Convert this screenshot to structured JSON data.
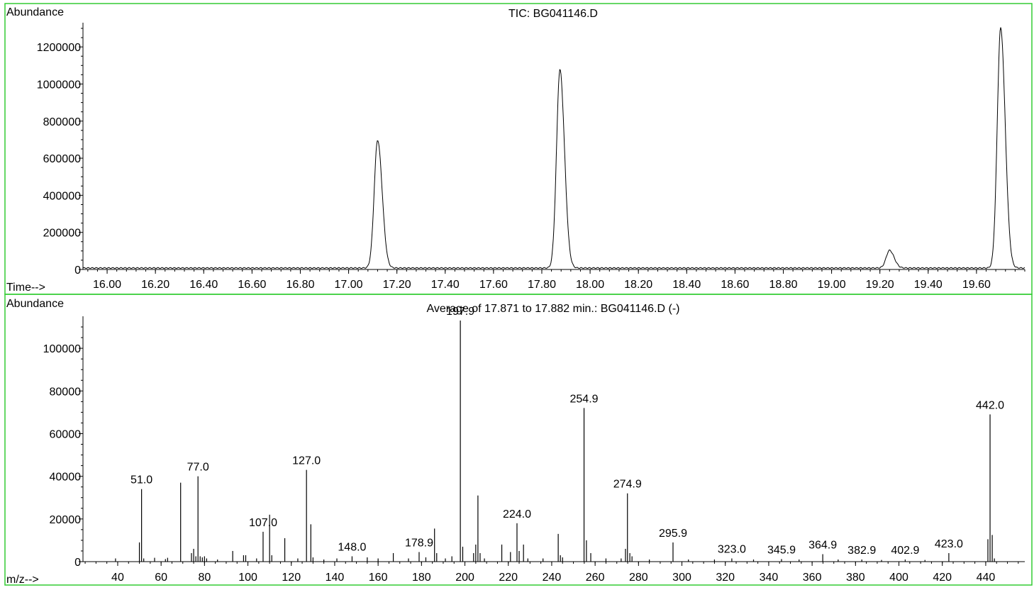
{
  "colors": {
    "frame": "#33cc33",
    "axis": "#000000",
    "trace": "#000000",
    "background": "#ffffff"
  },
  "chart_data": [
    {
      "type": "line",
      "title": "TIC: BG041146.D",
      "ylabel": "Abundance",
      "xlabel": "Time-->",
      "xlim": [
        15.9,
        19.8
      ],
      "ylim": [
        0,
        1300000
      ],
      "x_ticks": [
        "16.00",
        "16.20",
        "16.40",
        "16.60",
        "16.80",
        "17.00",
        "17.20",
        "17.40",
        "17.60",
        "17.80",
        "18.00",
        "18.20",
        "18.40",
        "18.60",
        "18.80",
        "19.00",
        "19.20",
        "19.40",
        "19.60"
      ],
      "y_ticks": [
        "0",
        "200000",
        "400000",
        "600000",
        "800000",
        "1000000",
        "1200000"
      ],
      "peaks": [
        {
          "rt": 17.12,
          "height": 690000
        },
        {
          "rt": 17.875,
          "height": 1070000
        },
        {
          "rt": 19.24,
          "height": 95000
        },
        {
          "rt": 19.7,
          "height": 1295000
        }
      ],
      "baseline": 8000
    },
    {
      "type": "bar",
      "title": "Average of 17.871 to 17.882 min.: BG041146.D (-)",
      "ylabel": "Abundance",
      "xlabel": "m/z-->",
      "xlim": [
        24,
        458
      ],
      "ylim": [
        0,
        115000
      ],
      "x_ticks": [
        "40",
        "60",
        "80",
        "100",
        "120",
        "140",
        "160",
        "180",
        "200",
        "220",
        "240",
        "260",
        "280",
        "300",
        "320",
        "340",
        "360",
        "380",
        "400",
        "420",
        "440"
      ],
      "y_ticks": [
        "0",
        "20000",
        "40000",
        "60000",
        "80000",
        "100000"
      ],
      "peaks": [
        {
          "mz": 39,
          "v": 1500
        },
        {
          "mz": 50,
          "v": 9000
        },
        {
          "mz": 51.0,
          "v": 34000,
          "label": "51.0"
        },
        {
          "mz": 52,
          "v": 1500
        },
        {
          "mz": 57,
          "v": 1800
        },
        {
          "mz": 62,
          "v": 1200
        },
        {
          "mz": 63,
          "v": 1800
        },
        {
          "mz": 69,
          "v": 37000
        },
        {
          "mz": 74,
          "v": 4000
        },
        {
          "mz": 75,
          "v": 6000
        },
        {
          "mz": 76,
          "v": 2500
        },
        {
          "mz": 77.0,
          "v": 40000,
          "label": "77.0"
        },
        {
          "mz": 78,
          "v": 2500
        },
        {
          "mz": 79,
          "v": 2000
        },
        {
          "mz": 80,
          "v": 2500
        },
        {
          "mz": 81,
          "v": 1500
        },
        {
          "mz": 86,
          "v": 1000
        },
        {
          "mz": 93,
          "v": 5000
        },
        {
          "mz": 98,
          "v": 3000
        },
        {
          "mz": 99,
          "v": 3000
        },
        {
          "mz": 104,
          "v": 1500
        },
        {
          "mz": 107.0,
          "v": 14000,
          "label": "107.0"
        },
        {
          "mz": 110,
          "v": 22000
        },
        {
          "mz": 111,
          "v": 3000
        },
        {
          "mz": 117,
          "v": 11000
        },
        {
          "mz": 123,
          "v": 1500
        },
        {
          "mz": 127.0,
          "v": 43000,
          "label": "127.0"
        },
        {
          "mz": 129,
          "v": 17500
        },
        {
          "mz": 130,
          "v": 2000
        },
        {
          "mz": 135,
          "v": 1000
        },
        {
          "mz": 141,
          "v": 1500
        },
        {
          "mz": 148.0,
          "v": 2500,
          "label": "148.0"
        },
        {
          "mz": 155,
          "v": 2000
        },
        {
          "mz": 160,
          "v": 1500
        },
        {
          "mz": 167,
          "v": 4000
        },
        {
          "mz": 174,
          "v": 1500
        },
        {
          "mz": 178.9,
          "v": 4500,
          "label": "178.9"
        },
        {
          "mz": 182,
          "v": 2000
        },
        {
          "mz": 186,
          "v": 15500
        },
        {
          "mz": 187,
          "v": 4000
        },
        {
          "mz": 191,
          "v": 1500
        },
        {
          "mz": 194,
          "v": 2500
        },
        {
          "mz": 197.9,
          "v": 113000,
          "label": "197.9"
        },
        {
          "mz": 199,
          "v": 7000
        },
        {
          "mz": 204,
          "v": 4000
        },
        {
          "mz": 205,
          "v": 8000
        },
        {
          "mz": 206,
          "v": 31000
        },
        {
          "mz": 207,
          "v": 4000
        },
        {
          "mz": 209,
          "v": 1500
        },
        {
          "mz": 217,
          "v": 8000
        },
        {
          "mz": 221,
          "v": 4500
        },
        {
          "mz": 224.0,
          "v": 18000,
          "label": "224.0"
        },
        {
          "mz": 225,
          "v": 5000
        },
        {
          "mz": 227,
          "v": 8000
        },
        {
          "mz": 229,
          "v": 1500
        },
        {
          "mz": 236,
          "v": 1500
        },
        {
          "mz": 243,
          "v": 13000
        },
        {
          "mz": 244,
          "v": 3000
        },
        {
          "mz": 245,
          "v": 2000
        },
        {
          "mz": 254.9,
          "v": 72000,
          "label": "254.9"
        },
        {
          "mz": 256,
          "v": 10000
        },
        {
          "mz": 258,
          "v": 4000
        },
        {
          "mz": 265,
          "v": 1500
        },
        {
          "mz": 272,
          "v": 1500
        },
        {
          "mz": 274,
          "v": 6000
        },
        {
          "mz": 274.9,
          "v": 32000,
          "label": "274.9"
        },
        {
          "mz": 276,
          "v": 4000
        },
        {
          "mz": 277,
          "v": 2500
        },
        {
          "mz": 285,
          "v": 1000
        },
        {
          "mz": 295.9,
          "v": 9000,
          "label": "295.9"
        },
        {
          "mz": 303,
          "v": 1000
        },
        {
          "mz": 315,
          "v": 1000
        },
        {
          "mz": 323.0,
          "v": 1500,
          "label": "323.0"
        },
        {
          "mz": 333,
          "v": 1000
        },
        {
          "mz": 345.9,
          "v": 1200,
          "label": "345.9"
        },
        {
          "mz": 354,
          "v": 1000
        },
        {
          "mz": 364.9,
          "v": 3500,
          "label": "364.9"
        },
        {
          "mz": 372,
          "v": 1000
        },
        {
          "mz": 382.9,
          "v": 1000,
          "label": "382.9"
        },
        {
          "mz": 392,
          "v": 800
        },
        {
          "mz": 402.9,
          "v": 1000,
          "label": "402.9"
        },
        {
          "mz": 412,
          "v": 800
        },
        {
          "mz": 423.0,
          "v": 4000,
          "label": "423.0"
        },
        {
          "mz": 441,
          "v": 10500
        },
        {
          "mz": 442.0,
          "v": 69000,
          "label": "442.0"
        },
        {
          "mz": 443,
          "v": 12500
        },
        {
          "mz": 444,
          "v": 1500
        }
      ]
    }
  ]
}
